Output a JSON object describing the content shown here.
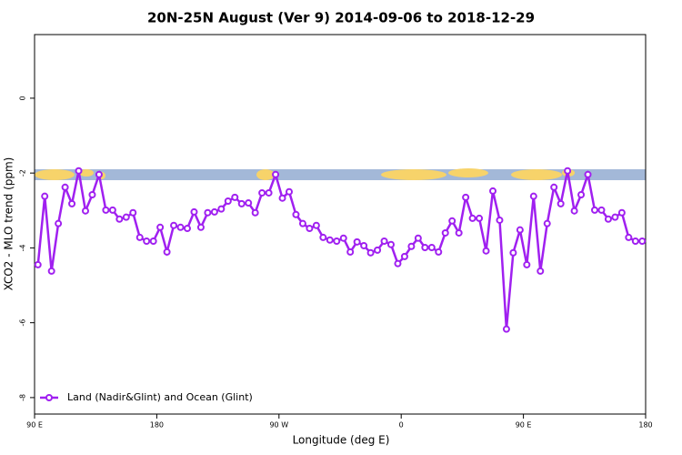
{
  "chart_data": {
    "type": "line",
    "title": "20N-25N August (Ver 9)   2014-09-06 to 2018-12-29",
    "x_label": "Longitude (deg E)",
    "y_label": "XCO2 - MLO trend (ppm)",
    "xlim": [
      90,
      540
    ],
    "ylim": [
      -8.44,
      1.7
    ],
    "xticks": [
      {
        "value": 90,
        "label": "90 E"
      },
      180,
      {
        "value": 270,
        "label": "90 W"
      },
      {
        "value": 360,
        "label": "0"
      },
      {
        "value": 450,
        "label": "90 E"
      },
      {
        "value": 540,
        "label": "180"
      }
    ],
    "yticks": [
      0,
      -2,
      -4,
      -6,
      -8
    ],
    "legend": "bottomleft",
    "grid": false,
    "x": [
      92.5,
      97.5,
      102.5,
      107.5,
      112.5,
      117.5,
      122.5,
      127.5,
      132.5,
      137.5,
      142.5,
      147.5,
      152.5,
      157.5,
      162.5,
      167.5,
      172.5,
      177.5,
      182.5,
      187.5,
      192.5,
      197.5,
      202.5,
      207.5,
      212.5,
      217.5,
      222.5,
      227.5,
      232.5,
      237.5,
      242.5,
      247.5,
      252.5,
      257.5,
      262.5,
      267.5,
      272.5,
      277.5,
      282.5,
      287.5,
      292.5,
      297.5,
      302.5,
      307.5,
      312.5,
      317.5,
      322.5,
      327.5,
      332.5,
      337.5,
      342.5,
      347.5,
      352.5,
      357.5,
      362.5,
      367.5,
      372.5,
      377.5,
      382.5,
      387.5,
      392.5,
      397.5,
      402.5,
      407.5,
      412.5,
      417.5,
      422.5,
      427.5,
      432.5,
      437.5,
      442.5,
      447.5,
      452.5,
      457.5,
      462.5,
      467.5,
      472.5,
      477.5,
      482.5,
      487.5,
      492.5,
      497.5,
      502.5,
      507.5,
      512.5,
      517.5,
      522.5,
      527.5,
      532.5,
      537.5
    ],
    "series": [
      {
        "name": "Land (Nadir&Glint) and Ocean (Glint)",
        "color": "#a020f0",
        "values": [
          -4.45,
          -2.62,
          -4.62,
          -3.35,
          -2.38,
          -2.82,
          -1.94,
          -3.01,
          -2.58,
          -2.04,
          -2.99,
          -2.99,
          -3.23,
          -3.18,
          -3.06,
          -3.72,
          -3.82,
          -3.82,
          -3.45,
          -4.11,
          -3.4,
          -3.45,
          -3.48,
          -3.04,
          -3.45,
          -3.06,
          -3.04,
          -2.96,
          -2.75,
          -2.65,
          -2.82,
          -2.8,
          -3.06,
          -2.53,
          -2.53,
          -2.04,
          -2.67,
          -2.5,
          -3.11,
          -3.35,
          -3.48,
          -3.4,
          -3.72,
          -3.79,
          -3.82,
          -3.74,
          -4.11,
          -3.84,
          -3.94,
          -4.13,
          -4.06,
          -3.82,
          -3.91,
          -4.42,
          -4.23,
          -3.96,
          -3.74,
          -3.99,
          -3.99,
          -4.11,
          -3.6,
          -3.28,
          -3.6,
          -2.65,
          -3.21,
          -3.21,
          -4.08,
          -2.48,
          -3.26,
          -6.17,
          -4.13,
          -3.52,
          -4.45,
          -2.62,
          -4.62,
          -3.35,
          -2.38,
          -2.82,
          -1.94,
          -3.01,
          -2.58,
          -2.04,
          -2.99,
          -2.99,
          -3.23,
          -3.18,
          -3.06,
          -3.72,
          -3.82,
          -3.82
        ]
      }
    ]
  }
}
